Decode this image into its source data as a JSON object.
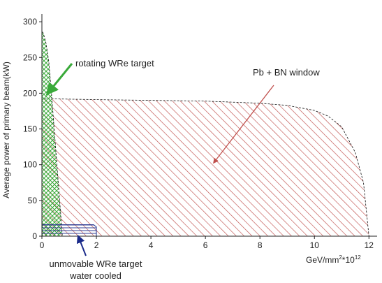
{
  "chart_data": {
    "type": "area",
    "title": "",
    "ylabel": "Average power of primary beam(kW)",
    "xlabel_main": "GeV/mm",
    "xlabel_sup1": "2",
    "xlabel_mid": "*10",
    "xlabel_sup2": "12",
    "xlim": [
      0,
      12.3
    ],
    "ylim": [
      0,
      305
    ],
    "xticks": [
      0,
      2,
      4,
      6,
      8,
      10,
      12
    ],
    "yticks": [
      0,
      50,
      100,
      150,
      200,
      250,
      300
    ],
    "grid": false,
    "series": [
      {
        "name": "Pb + BN window",
        "color": "#c0504d",
        "hatch": "red-diagonal",
        "x": [
          0,
          0.6,
          2,
          4,
          6,
          8,
          9,
          10,
          10.5,
          11,
          11.5,
          11.8,
          12
        ],
        "y": [
          192,
          192,
          191,
          190,
          189,
          186,
          183,
          176,
          168,
          153,
          117,
          75,
          0
        ]
      },
      {
        "name": "rotating WRe target",
        "color": "#3aaa3a",
        "hatch": "green-crosshatch",
        "x": [
          0,
          0.05,
          0.15,
          0.25,
          0.35,
          0.45,
          0.55,
          0.65,
          0.75
        ],
        "y": [
          287,
          284,
          270,
          245,
          200,
          150,
          100,
          50,
          0
        ]
      },
      {
        "name": "unmovable WRe target water cooled",
        "color": "#1a2a8a",
        "hatch": "blue-horizontal",
        "x": [
          0,
          1.9,
          2.0,
          2.0
        ],
        "y": [
          16,
          16,
          13,
          0
        ]
      }
    ],
    "annotations": [
      {
        "id": "pb",
        "text": "Pb + BN window",
        "color": "#c0504d"
      },
      {
        "id": "wre_rot",
        "text": "rotating WRe target",
        "color": "#3aaa3a"
      },
      {
        "id": "wre_fixed_1",
        "text": "unmovable WRe target",
        "color": "#1a2a8a"
      },
      {
        "id": "wre_fixed_2",
        "text": "water cooled",
        "color": "#1a2a8a"
      }
    ]
  }
}
